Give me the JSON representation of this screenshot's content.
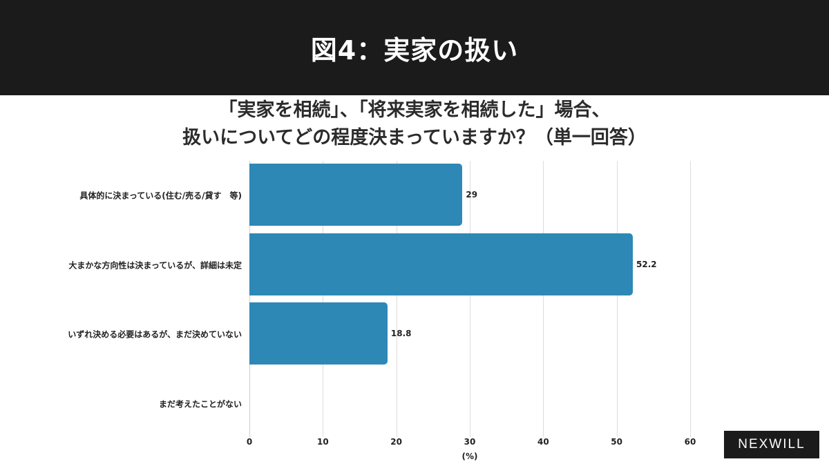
{
  "header": {
    "title": "図4：実家の扱い"
  },
  "subtitle": {
    "line1": "「実家を相続」、「将来実家を相続した」場合、",
    "line2": "扱いについてどの程度決まっていますか？（単一回答）"
  },
  "logo": {
    "text": "NEXWILL"
  },
  "colors": {
    "bar": "#2d88b6",
    "header_bg": "#1b1b1b",
    "grid": "#dcdcdc"
  },
  "chart_data": {
    "type": "bar",
    "orientation": "horizontal",
    "title": "「実家を相続」、「将来実家を相続した」場合、扱いについてどの程度決まっていますか？（単一回答）",
    "categories": [
      "具体的に決まっている(住む/売る/貸す　等)",
      "大まかな方向性は決まっているが、詳細は未定",
      "いずれ決める必要はあるが、まだ決めていない",
      "まだ考えたことがない"
    ],
    "values": [
      29,
      52.2,
      18.8,
      0
    ],
    "value_labels": [
      "29",
      "52.2",
      "18.8",
      ""
    ],
    "xlabel": "(%)",
    "ylabel": "",
    "xlim": [
      0,
      60
    ],
    "xticks": [
      "0",
      "10",
      "20",
      "30",
      "40",
      "50",
      "60"
    ],
    "grid": true,
    "legend": "none"
  }
}
